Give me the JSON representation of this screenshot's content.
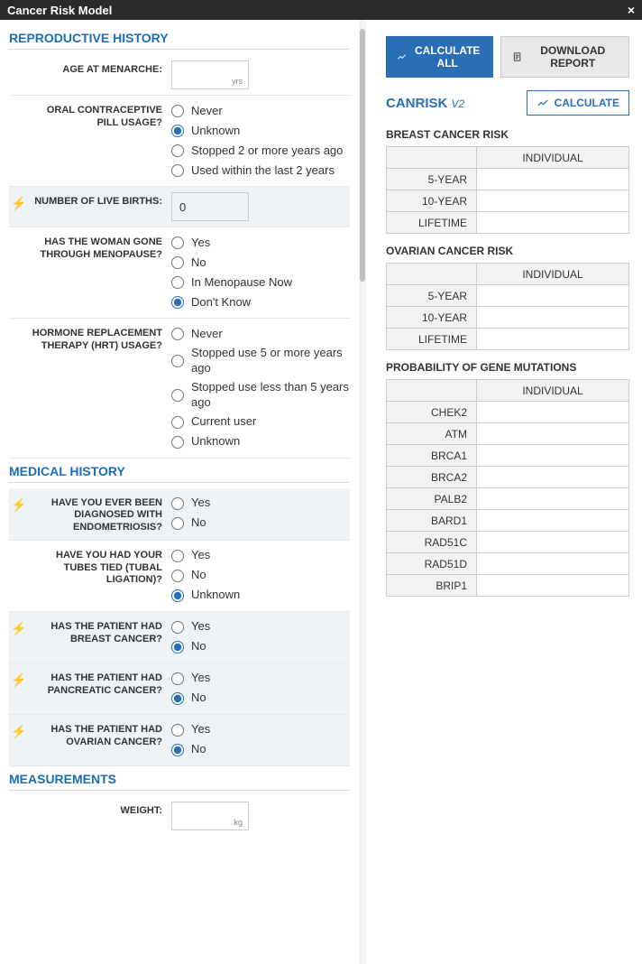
{
  "window": {
    "title": "Cancer Risk Model"
  },
  "sections": {
    "reproductive": "REPRODUCTIVE HISTORY",
    "medical": "MEDICAL HISTORY",
    "measurements": "MEASUREMENTS"
  },
  "fields": {
    "menarche": {
      "label": "AGE AT MENARCHE:",
      "value": "",
      "unit": "yrs"
    },
    "ocp": {
      "label": "ORAL CONTRACEPTIVE PILL USAGE?",
      "selected": "Unknown",
      "options": [
        "Never",
        "Unknown",
        "Stopped 2 or more years ago",
        "Used within the last 2 years"
      ]
    },
    "births": {
      "label": "NUMBER OF LIVE BIRTHS:",
      "value": "0"
    },
    "menopause": {
      "label": "HAS THE WOMAN GONE THROUGH MENOPAUSE?",
      "selected": "Don't Know",
      "options": [
        "Yes",
        "No",
        "In Menopause Now",
        "Don't Know"
      ]
    },
    "hrt": {
      "label": "HORMONE REPLACEMENT THERAPY (HRT) USAGE?",
      "selected": "",
      "options": [
        "Never",
        "Stopped use 5 or more years ago",
        "Stopped use less than 5 years ago",
        "Current user",
        "Unknown"
      ]
    },
    "endo": {
      "label": "HAVE YOU EVER BEEN DIAGNOSED WITH ENDOMETRIOSIS?",
      "selected": "",
      "options": [
        "Yes",
        "No"
      ]
    },
    "tubal": {
      "label": "HAVE YOU HAD YOUR TUBES TIED (TUBAL LIGATION)?",
      "selected": "Unknown",
      "options": [
        "Yes",
        "No",
        "Unknown"
      ]
    },
    "breast": {
      "label": "HAS THE PATIENT HAD BREAST CANCER?",
      "selected": "No",
      "options": [
        "Yes",
        "No"
      ]
    },
    "pancreatic": {
      "label": "HAS THE PATIENT HAD PANCREATIC CANCER?",
      "selected": "No",
      "options": [
        "Yes",
        "No"
      ]
    },
    "ovarian": {
      "label": "HAS THE PATIENT HAD OVARIAN CANCER?",
      "selected": "No",
      "options": [
        "Yes",
        "No"
      ]
    },
    "weight": {
      "label": "WEIGHT:",
      "value": "",
      "unit": "kg"
    }
  },
  "buttons": {
    "calc_all": "CALCULATE ALL",
    "download": "DOWNLOAD REPORT",
    "calculate": "CALCULATE"
  },
  "results": {
    "title": "CANRISK",
    "version": "V2",
    "col_header": "INDIVIDUAL",
    "breast": {
      "title": "BREAST CANCER RISK",
      "rows": [
        "5-YEAR",
        "10-YEAR",
        "LIFETIME"
      ]
    },
    "ovarian": {
      "title": "OVARIAN CANCER RISK",
      "rows": [
        "5-YEAR",
        "10-YEAR",
        "LIFETIME"
      ]
    },
    "genes": {
      "title": "PROBABILITY OF GENE MUTATIONS",
      "rows": [
        "CHEK2",
        "ATM",
        "BRCA1",
        "BRCA2",
        "PALB2",
        "BARD1",
        "RAD51C",
        "RAD51D",
        "BRIP1"
      ]
    }
  },
  "colors": {
    "accent": "#2a6fb5",
    "header_blue": "#1a6eb8",
    "shaded_row": "#edf3f7"
  }
}
